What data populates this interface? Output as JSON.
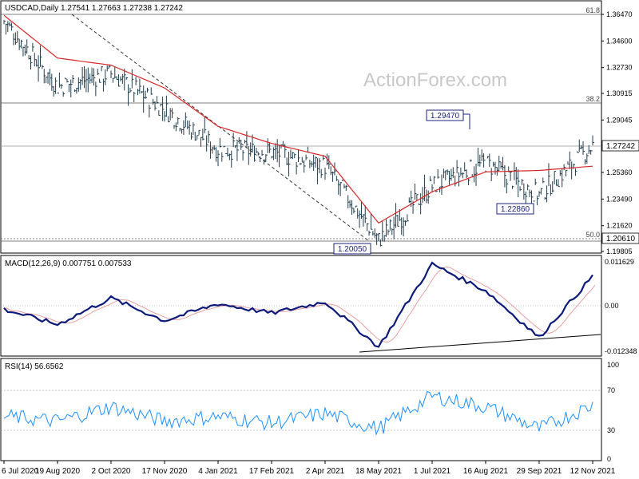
{
  "header": {
    "symbol_line": "USDCAD,Daily  1.27541 1.27663 1.27238 1.27242",
    "watermark": "ActionForex.com"
  },
  "price_panel": {
    "y_ticks": [
      "1.36470",
      "1.34600",
      "1.32730",
      "1.30915",
      "1.29045",
      "1.27242",
      "1.25360",
      "1.23490",
      "1.21620",
      "1.20610",
      "1.19805"
    ],
    "fib_labels": [
      "61.8",
      "38.2",
      "50.0"
    ],
    "annotations": [
      "1.29470",
      "1.22860",
      "1.20050"
    ],
    "current_price": "1.27242",
    "level_label": "1.20610"
  },
  "macd_panel": {
    "label": "MACD(12,26,9) 0.007751 0.007533",
    "ticks": [
      "0.011629",
      "0.00",
      "-0.012348"
    ]
  },
  "rsi_panel": {
    "label": "RSI(14) 56.6562",
    "ticks": [
      "100",
      "70",
      "30",
      "0"
    ]
  },
  "x_labels": [
    "6 Jul 2020",
    "19 Aug 2020",
    "2 Oct 2020",
    "17 Nov 2020",
    "4 Jan 2021",
    "17 Feb 2021",
    "2 Apr 2021",
    "18 May 2021",
    "1 Jul 2021",
    "16 Aug 2021",
    "29 Sep 2021",
    "12 Nov 2021"
  ],
  "colors": {
    "price_bars": "#1f3d4d",
    "moving_average": "#d62728",
    "macd_line": "#0d1a7a",
    "signal_line": "#e8a0a0",
    "rsi_line": "#1e90ff",
    "grid": "#808080",
    "box": "#1a237e"
  },
  "chart_data": [
    {
      "type": "ohlc",
      "title": "USDCAD,Daily  1.27541 1.27663 1.27238 1.27242",
      "x": [
        "6 Jul 2020",
        "19 Aug 2020",
        "2 Oct 2020",
        "17 Nov 2020",
        "4 Jan 2021",
        "17 Feb 2021",
        "2 Apr 2021",
        "18 May 2021",
        "1 Jul 2021",
        "16 Aug 2021",
        "29 Sep 2021",
        "12 Nov 2021"
      ],
      "close_path": [
        [
          "6 Jul 2020",
          1.36
        ],
        [
          "19 Aug 2020",
          1.314
        ],
        [
          "2 Oct 2020",
          1.323
        ],
        [
          "17 Nov 2020",
          1.298
        ],
        [
          "4 Jan 2021",
          1.27
        ],
        [
          "17 Feb 2021",
          1.268
        ],
        [
          "2 Apr 2021",
          1.258
        ],
        [
          "18 May 2021",
          1.206
        ],
        [
          "1 Jul 2021",
          1.244
        ],
        [
          "16 Aug 2021",
          1.26
        ],
        [
          "29 Sep 2021",
          1.238
        ],
        [
          "12 Nov 2021",
          1.2724
        ]
      ],
      "moving_average": [
        [
          "6 Jul 2020",
          1.364
        ],
        [
          "19 Aug 2020",
          1.334
        ],
        [
          "2 Oct 2020",
          1.329
        ],
        [
          "17 Nov 2020",
          1.313
        ],
        [
          "4 Jan 2021",
          1.286
        ],
        [
          "17 Feb 2021",
          1.274
        ],
        [
          "2 Apr 2021",
          1.265
        ],
        [
          "18 May 2021",
          1.218
        ],
        [
          "1 Jul 2021",
          1.24
        ],
        [
          "16 Aug 2021",
          1.254
        ],
        [
          "29 Sep 2021",
          1.255
        ],
        [
          "12 Nov 2021",
          1.258
        ]
      ],
      "ylim": [
        1.19805,
        1.3647
      ],
      "fibonacci": [
        {
          "label": "61.8",
          "value": 1.362
        },
        {
          "label": "38.2",
          "value": 1.3
        },
        {
          "label": "50.0",
          "value": 1.2061
        }
      ],
      "annotations": [
        {
          "label": "1.29470",
          "value": 1.2947
        },
        {
          "label": "1.22860",
          "value": 1.2286
        },
        {
          "label": "1.20050",
          "value": 1.2005
        }
      ],
      "current": 1.27242
    },
    {
      "type": "line",
      "title": "MACD(12,26,9) 0.007751 0.007533",
      "ylim": [
        -0.012348,
        0.011629
      ],
      "macd": [
        [
          "6 Jul 2020",
          -0.001
        ],
        [
          "19 Aug 2020",
          -0.005
        ],
        [
          "2 Oct 2020",
          0.002
        ],
        [
          "17 Nov 2020",
          -0.004
        ],
        [
          "4 Jan 2021",
          0.0005
        ],
        [
          "17 Feb 2021",
          -0.002
        ],
        [
          "2 Apr 2021",
          0.001
        ],
        [
          "18 May 2021",
          -0.011
        ],
        [
          "1 Jul 2021",
          0.011
        ],
        [
          "16 Aug 2021",
          0.004
        ],
        [
          "29 Sep 2021",
          -0.0085
        ],
        [
          "12 Nov 2021",
          0.0078
        ]
      ]
    },
    {
      "type": "line",
      "title": "RSI(14) 56.6562",
      "ylim": [
        0,
        100
      ],
      "levels": [
        70,
        30
      ],
      "rsi": [
        [
          "6 Jul 2020",
          45
        ],
        [
          "19 Aug 2020",
          40
        ],
        [
          "2 Oct 2020",
          55
        ],
        [
          "17 Nov 2020",
          40
        ],
        [
          "4 Jan 2021",
          45
        ],
        [
          "17 Feb 2021",
          38
        ],
        [
          "2 Apr 2021",
          48
        ],
        [
          "18 May 2021",
          32
        ],
        [
          "1 Jul 2021",
          66
        ],
        [
          "16 Aug 2021",
          55
        ],
        [
          "29 Sep 2021",
          32
        ],
        [
          "12 Nov 2021",
          56.6562
        ]
      ]
    }
  ]
}
